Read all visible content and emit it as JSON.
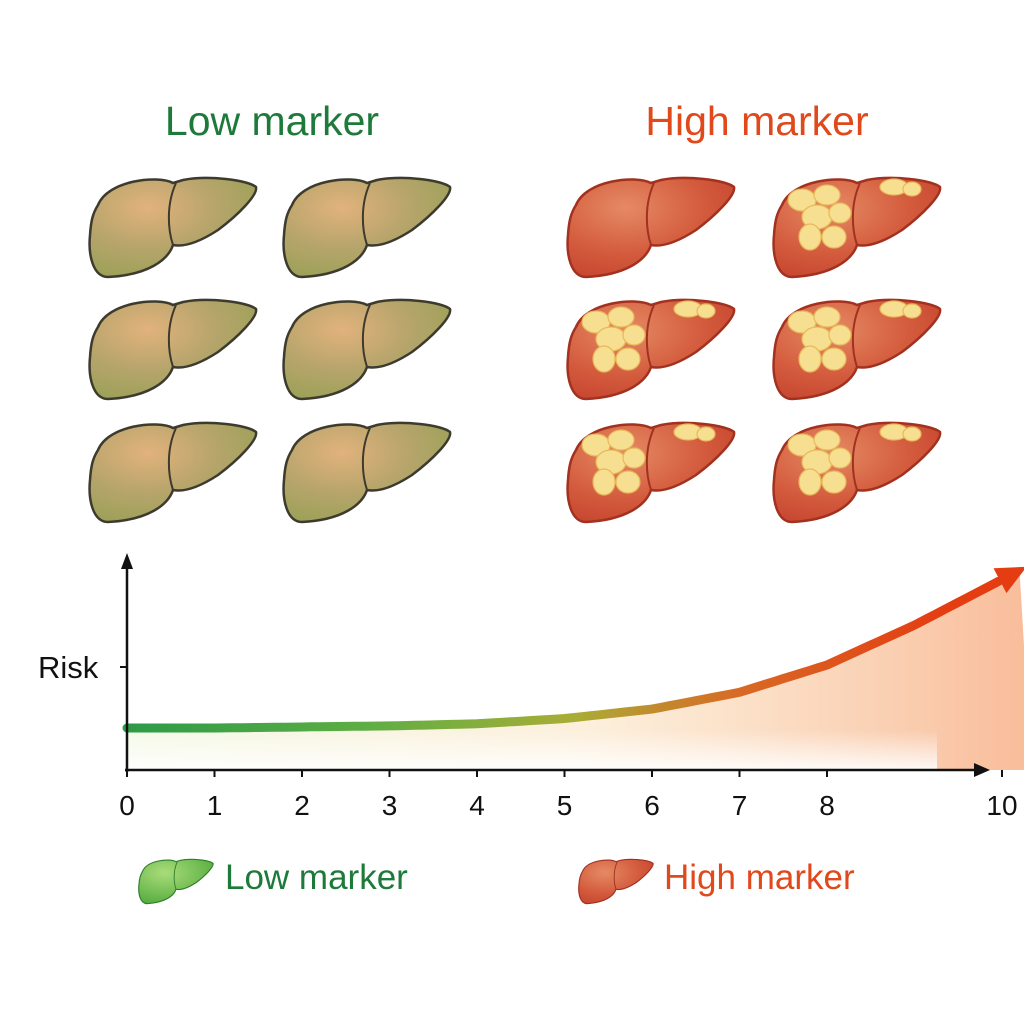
{
  "titles": {
    "low": "Low marker",
    "high": "High marker"
  },
  "legend": {
    "low": "Low marker",
    "high": "High marker"
  },
  "colors": {
    "low": "#1e7a3a",
    "high": "#e0491c",
    "healthy_liver": "#a9a66a",
    "diseased_liver": "#d2553a",
    "fat": "#f6dc8a"
  },
  "grids": {
    "low": {
      "livers": [
        "healthy",
        "healthy",
        "healthy",
        "healthy",
        "healthy",
        "healthy"
      ]
    },
    "high": {
      "livers": [
        "inflamed",
        "fatty",
        "fatty",
        "fatty",
        "fatty",
        "fatty"
      ]
    }
  },
  "chart_data": {
    "type": "line",
    "title": "",
    "xlabel": "",
    "ylabel": "Risk",
    "xticks": [
      "0",
      "1",
      "2",
      "3",
      "4",
      "5",
      "6",
      "7",
      "8",
      "10"
    ],
    "xtick_values": [
      0,
      1,
      2,
      3,
      4,
      5,
      6,
      7,
      8,
      10
    ],
    "xlim": [
      0,
      10.5
    ],
    "ylim": [
      0,
      10
    ],
    "grid": false,
    "series": [
      {
        "name": "Risk",
        "x": [
          0,
          1,
          2,
          3,
          4,
          5,
          6,
          7,
          8,
          9,
          10.2
        ],
        "y": [
          2.0,
          2.0,
          2.05,
          2.1,
          2.2,
          2.45,
          2.9,
          3.7,
          5.0,
          6.9,
          9.5
        ]
      }
    ]
  }
}
